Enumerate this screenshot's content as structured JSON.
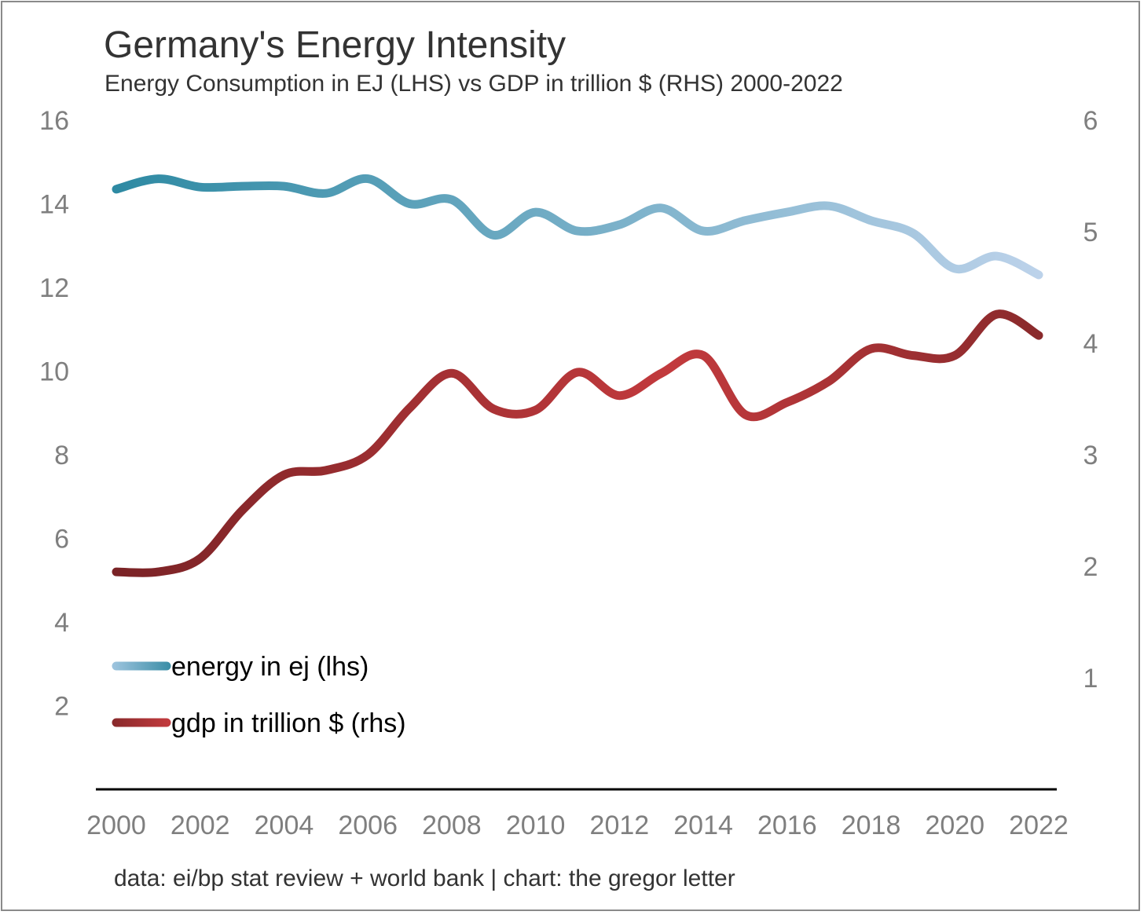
{
  "title": "Germany's Energy Intensity",
  "subtitle": "Energy Consumption in EJ (LHS) vs GDP in trillion $ (RHS) 2000-2022",
  "source": "data: ei/bp stat review + world bank | chart: the gregor letter",
  "colors": {
    "energy_start": "#2e8aa3",
    "energy_end": "#bcd2ea",
    "gdp_start": "#7a2326",
    "gdp_end": "#c23a3d",
    "axis": "#000000",
    "tick": "#7f7f7f"
  },
  "chart_data": {
    "type": "line",
    "title": "Germany's Energy Intensity",
    "subtitle": "Energy Consumption in EJ (LHS) vs GDP in trillion $ (RHS) 2000-2022",
    "x": [
      2000,
      2001,
      2002,
      2003,
      2004,
      2005,
      2006,
      2007,
      2008,
      2009,
      2010,
      2011,
      2012,
      2013,
      2014,
      2015,
      2016,
      2017,
      2018,
      2019,
      2020,
      2021,
      2022
    ],
    "x_ticks": [
      "2000",
      "2002",
      "2004",
      "2006",
      "2008",
      "2010",
      "2012",
      "2014",
      "2016",
      "2018",
      "2020",
      "2022"
    ],
    "y_left": {
      "ylim": [
        0,
        16
      ],
      "ticks": [
        "2",
        "4",
        "6",
        "8",
        "10",
        "12",
        "14",
        "16"
      ]
    },
    "y_right": {
      "ylim": [
        0,
        6
      ],
      "ticks": [
        "1",
        "2",
        "3",
        "4",
        "5",
        "6"
      ]
    },
    "series": [
      {
        "name": "energy in ej (lhs)",
        "axis": "left",
        "values": [
          14.35,
          14.6,
          14.4,
          14.42,
          14.42,
          14.25,
          14.6,
          14.0,
          14.1,
          13.25,
          13.8,
          13.35,
          13.5,
          13.9,
          13.35,
          13.6,
          13.8,
          13.95,
          13.6,
          13.3,
          12.45,
          12.75,
          12.3
        ]
      },
      {
        "name": "gdp in trillion $ (rhs)",
        "axis": "right",
        "values": [
          1.95,
          1.95,
          2.07,
          2.5,
          2.82,
          2.86,
          3.0,
          3.42,
          3.73,
          3.41,
          3.4,
          3.74,
          3.53,
          3.73,
          3.89,
          3.36,
          3.47,
          3.66,
          3.95,
          3.89,
          3.89,
          4.26,
          4.07
        ]
      }
    ],
    "legend": "bottom-left",
    "grid": false
  }
}
